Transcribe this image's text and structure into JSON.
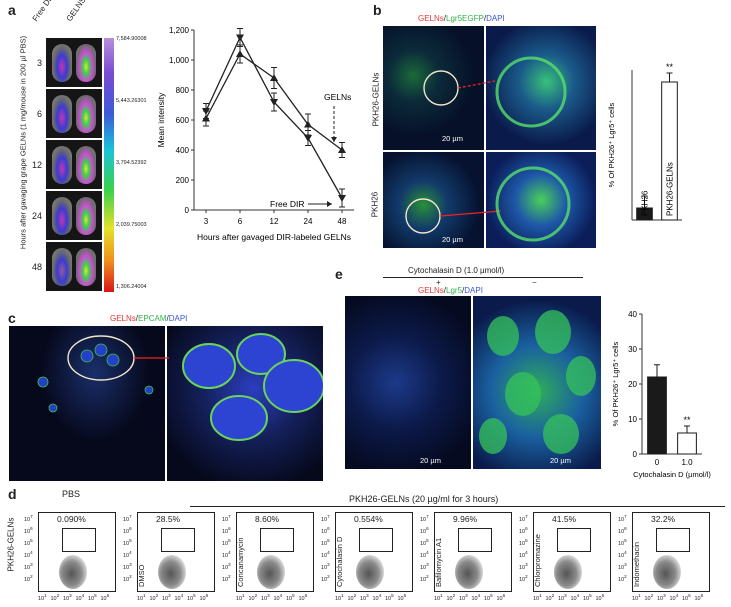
{
  "panels": {
    "a": {
      "label": "a",
      "col_free": "Free DIR",
      "col_gelns": "GELNS",
      "side_label": "Hours after gavaging grape GELNs (1 mg/mouse in 200 µl PBS)",
      "times": [
        "3",
        "6",
        "12",
        "24",
        "48"
      ],
      "scale_ticks": [
        "7,584.90008",
        "5,443.26301",
        "3,794.52392",
        "2,039.75003",
        "1,306.24004"
      ],
      "chart_data": {
        "type": "line",
        "x": [
          "3",
          "6",
          "12",
          "24",
          "48"
        ],
        "xlabel": "Hours after gavaged DIR-labeled GELNs",
        "ylabel": "Mean intensity",
        "yticks": [
          "0",
          "200",
          "400",
          "600",
          "800",
          "1,000",
          "1,200"
        ],
        "ylim": [
          0,
          1200
        ],
        "series": [
          {
            "name": "GELNs",
            "values": [
              610,
              1040,
              880,
              570,
              400
            ],
            "errors": [
              50,
              60,
              70,
              70,
              50
            ]
          },
          {
            "name": "Free DIR",
            "values": [
              660,
              1150,
              720,
              480,
              80
            ],
            "errors": [
              50,
              60,
              60,
              50,
              60
            ]
          }
        ]
      }
    },
    "b": {
      "label": "b",
      "title_gelns": "GELNs",
      "title_lgr": "Lgr5EGFP",
      "title_dapi": "DAPI",
      "slash": "/",
      "row1": "PKH26-GELNs",
      "row2": "PKH26",
      "scale": "20 µm",
      "chart_data": {
        "type": "bar",
        "categories": [
          "PKH26",
          "PKH26-GELNs"
        ],
        "values": [
          2,
          23
        ],
        "errors": [
          2,
          1.5
        ],
        "ylabel": "% Of PKH26⁺ Lgr5⁺ cells",
        "significance": "**",
        "ylim": [
          0,
          25
        ]
      }
    },
    "c": {
      "label": "c",
      "title_gelns": "GELNs",
      "title_epcam": "EPCAM",
      "title_dapi": "DAPI",
      "slash": "/"
    },
    "e": {
      "label": "e",
      "treatment": "Cytochalasin D (1.0 µmol/l)",
      "plus": "+",
      "minus": "−",
      "title_gelns": "GELNs",
      "title_lgr": "Lgr5",
      "title_dapi": "DAPI",
      "slash": "/",
      "scale": "20 µm",
      "chart_data": {
        "type": "bar",
        "categories": [
          "0",
          "1.0"
        ],
        "values": [
          22,
          6
        ],
        "errors": [
          3.5,
          2
        ],
        "ylabel": "% Of PKH26⁺ Lgr5⁺ cells",
        "xlabel": "Cytochalasin D (µmol/l)",
        "yticks": [
          "0",
          "10",
          "20",
          "30",
          "40"
        ],
        "ylim": [
          0,
          40
        ],
        "significance": "**"
      }
    },
    "d": {
      "label": "d",
      "pbs": "PBS",
      "header": "PKH26-GELNs (20 µg/ml for 3 hours)",
      "ylabel": "PKH26-GELNs",
      "plots": [
        {
          "pct": "0.090%",
          "name": ""
        },
        {
          "pct": "28.5%",
          "name": "DMSO"
        },
        {
          "pct": "8.60%",
          "name": "Concanamycin"
        },
        {
          "pct": "0.554%",
          "name": "Cytochalasin D"
        },
        {
          "pct": "9.96%",
          "name": "Bafilomycin A1"
        },
        {
          "pct": "41.5%",
          "name": "Chlorpromazine"
        },
        {
          "pct": "32.2%",
          "name": "Indomethacin"
        }
      ],
      "ytick": "10",
      "xtick": "10"
    }
  }
}
